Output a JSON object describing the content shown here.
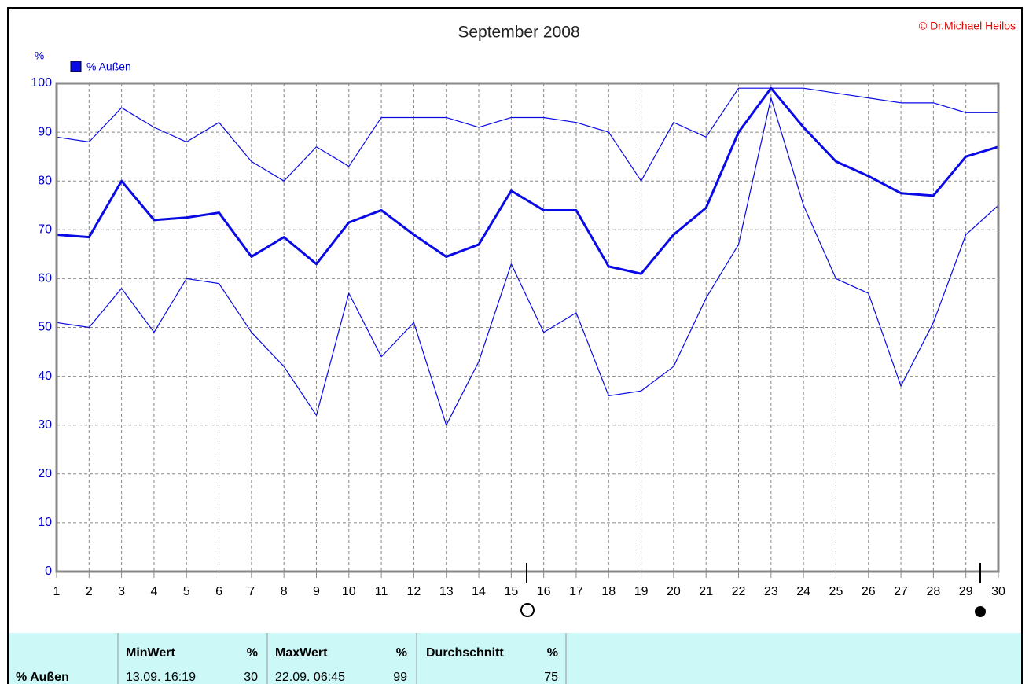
{
  "chart_data": {
    "type": "line",
    "title": "September 2008",
    "copyright": "© Dr.Michael Heilos",
    "ylabel": "%",
    "x": [
      1,
      2,
      3,
      4,
      5,
      6,
      7,
      8,
      9,
      10,
      11,
      12,
      13,
      14,
      15,
      16,
      17,
      18,
      19,
      20,
      21,
      22,
      23,
      24,
      25,
      26,
      27,
      28,
      29,
      30
    ],
    "series": [
      {
        "name": "% Außen",
        "color": "#0a0ae6",
        "line_width": 3,
        "values": [
          69,
          68.5,
          80,
          72,
          72.5,
          73.5,
          64.5,
          68.5,
          63,
          71.5,
          74,
          69,
          64.5,
          67,
          78,
          74,
          74,
          62.5,
          61,
          69,
          74.5,
          90,
          99,
          91,
          84,
          81,
          77.5,
          77,
          85,
          87
        ]
      },
      {
        "color": "#0a0ae6",
        "line_width": 1.2,
        "values": [
          89,
          88,
          95,
          91,
          88,
          92,
          84,
          80,
          87,
          83,
          93,
          93,
          93,
          91,
          93,
          93,
          92,
          90,
          80,
          92,
          89,
          99,
          99,
          99,
          98,
          97,
          96,
          96,
          94,
          94
        ]
      },
      {
        "color": "#0a0ae6",
        "line_width": 1.2,
        "values": [
          51,
          50,
          58,
          49,
          60,
          59,
          49,
          42,
          32,
          57,
          44,
          51,
          30,
          43,
          63,
          49,
          53,
          36,
          37,
          42,
          56,
          67,
          97,
          75,
          60,
          57,
          38,
          51,
          69,
          75
        ]
      }
    ],
    "xlim": [
      1,
      30
    ],
    "xticks": [
      1,
      2,
      3,
      4,
      5,
      6,
      7,
      8,
      9,
      10,
      11,
      12,
      13,
      14,
      15,
      16,
      17,
      18,
      19,
      20,
      21,
      22,
      23,
      24,
      25,
      26,
      27,
      28,
      29,
      30
    ],
    "ylim": [
      0,
      100
    ],
    "yticks": [
      0,
      10,
      20,
      30,
      40,
      50,
      60,
      70,
      80,
      90,
      100
    ],
    "grid": true
  },
  "table": {
    "headers": [
      [
        "MinWert",
        "%"
      ],
      [
        "MaxWert",
        "%"
      ],
      [
        "Durchschnitt",
        "%"
      ]
    ],
    "rows": [
      [
        "% Außen",
        "13.09. 16:19",
        30,
        "22.09. 06:45",
        99,
        75
      ]
    ]
  }
}
